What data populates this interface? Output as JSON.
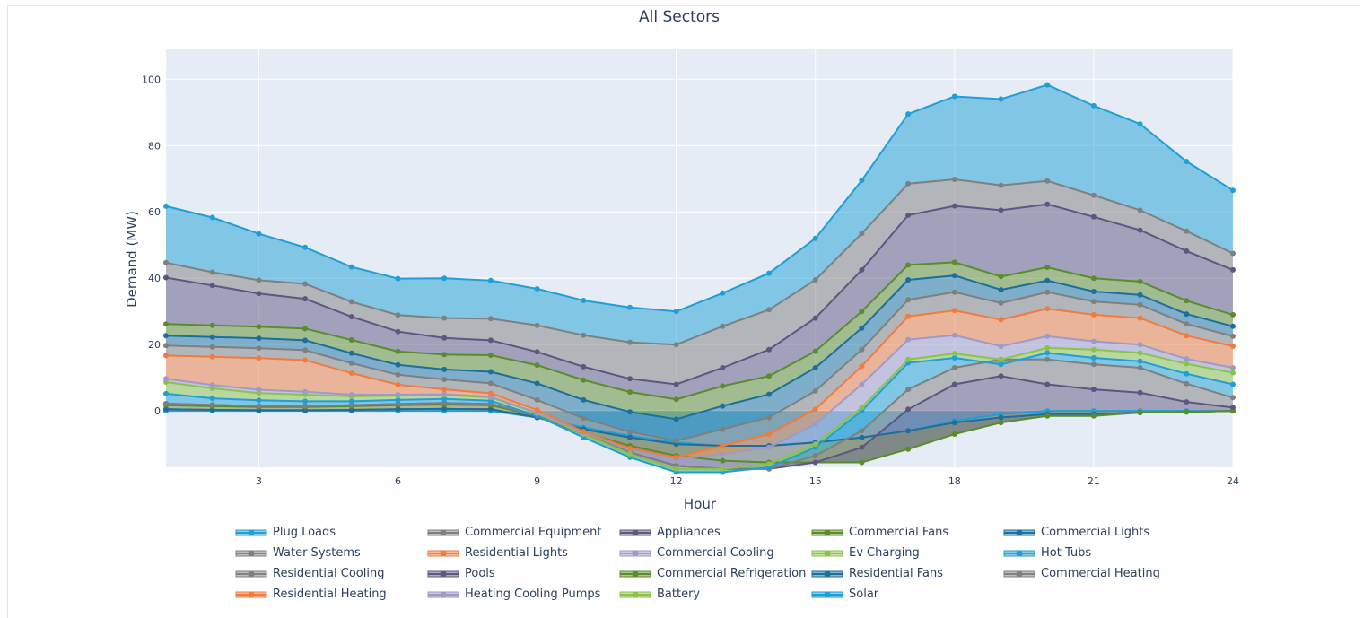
{
  "chart_data": {
    "type": "area",
    "title": "All Sectors",
    "xlabel": "Hour",
    "ylabel": "Demand (MW)",
    "xlim": [
      1,
      24
    ],
    "ylim": [
      -17,
      109
    ],
    "x_ticks": [
      3,
      6,
      9,
      12,
      15,
      18,
      21,
      24
    ],
    "y_ticks": [
      0,
      20,
      40,
      60,
      80,
      100
    ],
    "y_tick_labels": [
      "0",
      "20",
      "40",
      "60",
      "80",
      "100"
    ],
    "grid": true,
    "legend_position": "bottom",
    "x": [
      1,
      2,
      3,
      4,
      5,
      6,
      7,
      8,
      9,
      10,
      11,
      12,
      13,
      14,
      15,
      16,
      17,
      18,
      19,
      20,
      21,
      22,
      23,
      24
    ],
    "series": [
      {
        "name": "Solar",
        "color": "#1f9fd6",
        "bottom": true,
        "values": [
          0,
          0,
          0,
          0,
          0,
          0,
          0,
          0,
          -2,
          -5,
          -7.5,
          -9.5,
          -10.5,
          -10.5,
          -9.5,
          -8,
          -6,
          -3,
          -1,
          0,
          0,
          0,
          0,
          0
        ]
      },
      {
        "name": "Battery",
        "color": "#8bc34a",
        "bottom": true,
        "values": [
          0.5,
          0.3,
          0.2,
          0.2,
          0.3,
          0.5,
          0.6,
          0.5,
          0,
          -0.5,
          -0.5,
          -0.5,
          0,
          0,
          0,
          0,
          0,
          -0.5,
          -1,
          -1,
          -1,
          -0.5,
          -0.3,
          0
        ]
      },
      {
        "name": "Heating Cooling Pumps",
        "color": "#9e9ac8",
        "bottom": true,
        "values": [
          0,
          0,
          0,
          0,
          0,
          0,
          0,
          0,
          0,
          0,
          0,
          0,
          0,
          0,
          0,
          0,
          0,
          0,
          0,
          0,
          0,
          0,
          0,
          0
        ]
      },
      {
        "name": "Residential Heating",
        "color": "#ef7c3f",
        "bottom": true,
        "values": [
          0,
          0,
          0,
          0,
          0,
          0,
          0,
          0,
          0,
          0,
          0,
          0,
          0,
          0,
          0,
          0,
          0,
          0,
          0,
          0,
          0,
          0,
          0,
          0
        ]
      },
      {
        "name": "Commercial Heating",
        "color": "#7f7f7f",
        "bottom": true,
        "values": [
          0,
          0,
          0,
          0,
          0,
          0,
          0,
          0,
          0,
          0,
          0,
          0,
          0,
          0,
          0,
          0,
          0,
          0,
          0,
          0,
          0,
          0,
          0,
          0
        ]
      },
      {
        "name": "Residential Fans",
        "color": "#1a6f9e",
        "bottom": true,
        "values": [
          0,
          0,
          0,
          0,
          0,
          0,
          0,
          0,
          0,
          0,
          0,
          0,
          0,
          0,
          0,
          0,
          0,
          0,
          0,
          0,
          0,
          0,
          0,
          0
        ]
      },
      {
        "name": "Commercial Refrigeration",
        "color": "#5b8c2a",
        "bottom": true,
        "values": [
          1.2,
          1.1,
          1,
          1,
          1.1,
          1.2,
          1.3,
          1.2,
          0.5,
          -1,
          -2.5,
          -3.5,
          -4.5,
          -5,
          -6,
          -7.5,
          -5.5,
          -3.5,
          -1.5,
          -0.5,
          -0.5,
          0,
          0,
          0
        ]
      },
      {
        "name": "Pools",
        "color": "#5d5680",
        "bottom": true,
        "values": [
          0.5,
          0.4,
          0.3,
          0.3,
          0.3,
          0.4,
          0.5,
          0.4,
          0,
          -0.5,
          -2,
          -3,
          -2.5,
          -2,
          0,
          4.5,
          12,
          15,
          14,
          9.5,
          8,
          6,
          3,
          1
        ]
      },
      {
        "name": "Residential Cooling",
        "color": "#7f7f7f",
        "bottom": false,
        "values": [
          0,
          0,
          0,
          0,
          0,
          0,
          0,
          0,
          0,
          0,
          0,
          0,
          0,
          0,
          2,
          5,
          6,
          5,
          5,
          7.5,
          7.5,
          7.5,
          5.5,
          3
        ]
      },
      {
        "name": "Hot Tubs",
        "color": "#1f9fd6",
        "bottom": false,
        "values": [
          3,
          2,
          1.7,
          1.4,
          1.2,
          1.2,
          1.2,
          1,
          0,
          -1,
          -1.5,
          -2,
          -1,
          0.5,
          2.5,
          6,
          8,
          3,
          -1.5,
          2,
          2,
          2,
          3,
          4
        ]
      },
      {
        "name": "Ev Charging",
        "color": "#8bc34a",
        "bottom": false,
        "values": [
          3.5,
          3,
          2.2,
          2,
          1.5,
          1.3,
          1.2,
          1,
          0.8,
          1,
          1,
          1,
          1,
          1,
          1,
          1,
          1,
          1.3,
          1.5,
          1.5,
          2.5,
          2.5,
          3,
          3.5
        ]
      },
      {
        "name": "Commercial Cooling",
        "color": "#9e9ac8",
        "bottom": false,
        "values": [
          1,
          1,
          1,
          0.9,
          0.5,
          0.3,
          0.2,
          0.2,
          0.2,
          0.5,
          1.5,
          3,
          4.5,
          5,
          6,
          7,
          6,
          5.5,
          4,
          3.5,
          2.5,
          2.5,
          1.5,
          1.5
        ]
      },
      {
        "name": "Residential Lights",
        "color": "#ef7c3f",
        "bottom": false,
        "values": [
          7,
          8.5,
          9.5,
          9.5,
          6.5,
          3,
          1.5,
          1,
          0.8,
          0.3,
          0.2,
          0.5,
          2.5,
          4,
          4.5,
          5.5,
          7,
          7.5,
          8,
          8.3,
          8,
          8,
          7,
          6.5
        ]
      },
      {
        "name": "Water Systems",
        "color": "#7f7f7f",
        "bottom": false,
        "values": [
          3,
          3,
          3,
          3,
          3,
          3,
          3,
          3,
          3,
          4,
          5,
          5,
          5,
          5,
          5.5,
          5,
          5,
          5.5,
          5,
          5,
          4,
          4,
          3.5,
          3
        ]
      },
      {
        "name": "Commercial Lights",
        "color": "#1a6f9e",
        "bottom": false,
        "values": [
          3,
          3,
          3,
          3,
          3,
          3,
          3,
          3.5,
          5,
          5.5,
          6,
          6.5,
          7,
          7,
          7,
          6.5,
          6,
          5,
          4,
          3.5,
          3,
          3,
          3,
          3
        ]
      },
      {
        "name": "Commercial Fans",
        "color": "#5b8c2a",
        "bottom": false,
        "values": [
          3.5,
          3.5,
          3.5,
          3.5,
          4,
          4,
          4.5,
          5,
          5.5,
          6,
          6,
          6,
          6,
          5.5,
          5,
          5,
          4.5,
          4,
          4,
          4,
          4,
          4,
          4,
          3.5
        ]
      },
      {
        "name": "Appliances",
        "color": "#5d5680",
        "bottom": false,
        "values": [
          14,
          12,
          10,
          9,
          7,
          6,
          5,
          4.5,
          4,
          4,
          4,
          4.5,
          5.5,
          8,
          10,
          12.5,
          15,
          17,
          20,
          19,
          18.5,
          15.5,
          15,
          13.5
        ]
      },
      {
        "name": "Commercial Equipment",
        "color": "#7f7f7f",
        "bottom": false,
        "values": [
          4.5,
          4,
          4,
          4.5,
          4.5,
          5,
          6,
          6.5,
          8,
          9.5,
          11,
          12,
          12.5,
          12,
          11.5,
          11,
          9.5,
          8,
          7.5,
          7,
          6.5,
          6,
          6,
          5
        ]
      },
      {
        "name": "Plug Loads",
        "color": "#1f9fd6",
        "bottom": false,
        "values": [
          17,
          16.5,
          14,
          11,
          10.5,
          11,
          12,
          11.5,
          11,
          10.5,
          10.5,
          10,
          10,
          11,
          12.5,
          16,
          21,
          25,
          26,
          29,
          27,
          26,
          21,
          19
        ]
      }
    ]
  },
  "legend_items": [
    {
      "label": "Plug Loads",
      "color": "#1f9fd6"
    },
    {
      "label": "Commercial Equipment",
      "color": "#7f7f7f"
    },
    {
      "label": "Appliances",
      "color": "#5d5680"
    },
    {
      "label": "Commercial Fans",
      "color": "#5b8c2a"
    },
    {
      "label": "Commercial Lights",
      "color": "#1a6f9e"
    },
    {
      "label": "Water Systems",
      "color": "#7f7f7f"
    },
    {
      "label": "Residential Lights",
      "color": "#ef7c3f"
    },
    {
      "label": "Commercial Cooling",
      "color": "#9e9ac8"
    },
    {
      "label": "Ev Charging",
      "color": "#8bc34a"
    },
    {
      "label": "Hot Tubs",
      "color": "#1f9fd6"
    },
    {
      "label": "Residential Cooling",
      "color": "#7f7f7f"
    },
    {
      "label": "Pools",
      "color": "#5d5680"
    },
    {
      "label": "Commercial Refrigeration",
      "color": "#5b8c2a"
    },
    {
      "label": "Residential Fans",
      "color": "#1a6f9e"
    },
    {
      "label": "Commercial Heating",
      "color": "#7f7f7f"
    },
    {
      "label": "Residential Heating",
      "color": "#ef7c3f"
    },
    {
      "label": "Heating Cooling Pumps",
      "color": "#9e9ac8"
    },
    {
      "label": "Battery",
      "color": "#8bc34a"
    },
    {
      "label": "Solar",
      "color": "#1f9fd6"
    }
  ],
  "colors": {
    "plot_bg": "#e5ecf6",
    "grid": "#ffffff",
    "text": "#2a3f5f"
  }
}
